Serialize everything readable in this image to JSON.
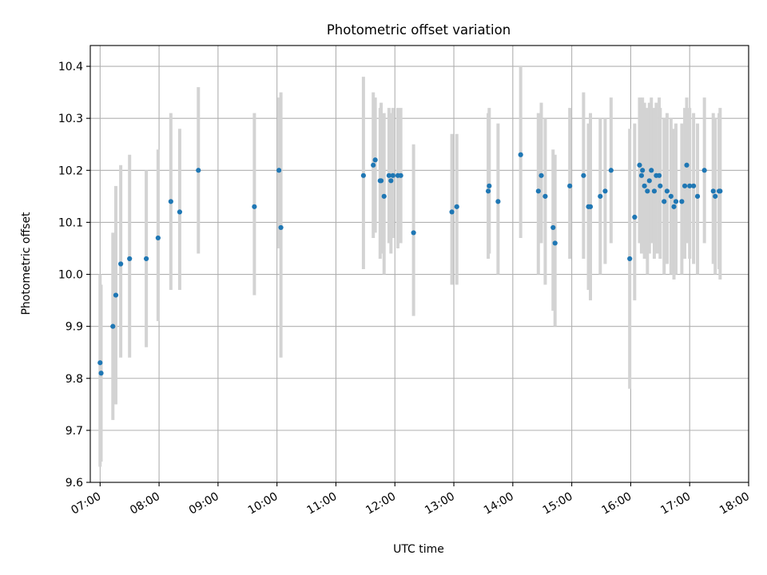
{
  "chart_data": {
    "type": "scatter",
    "title": "Photometric offset variation",
    "xlabel": "UTC time",
    "ylabel": "Photometric offset",
    "xlim": [
      "06:50",
      "18:00"
    ],
    "ylim": [
      9.6,
      10.44
    ],
    "x_ticks": [
      "07:00",
      "08:00",
      "09:00",
      "10:00",
      "11:00",
      "12:00",
      "13:00",
      "14:00",
      "15:00",
      "16:00",
      "17:00",
      "18:00"
    ],
    "y_ticks": [
      "9.6",
      "9.7",
      "9.8",
      "9.9",
      "10.0",
      "10.1",
      "10.2",
      "10.3",
      "10.4"
    ],
    "grid": true,
    "colors": {
      "points": "#1f77b4",
      "errorbars": "#d3d3d3",
      "grid": "#b0b0b0"
    },
    "series": [
      {
        "points": [
          {
            "x": "07:00",
            "y": 9.83,
            "lo": 9.63,
            "hi": 10.0
          },
          {
            "x": "07:01",
            "y": 9.81,
            "lo": 9.64,
            "hi": 9.98
          },
          {
            "x": "07:13",
            "y": 9.9,
            "lo": 9.72,
            "hi": 10.08
          },
          {
            "x": "07:16",
            "y": 9.96,
            "lo": 9.75,
            "hi": 10.17
          },
          {
            "x": "07:21",
            "y": 10.02,
            "lo": 9.84,
            "hi": 10.21
          },
          {
            "x": "07:30",
            "y": 10.03,
            "lo": 9.84,
            "hi": 10.23
          },
          {
            "x": "07:47",
            "y": 10.03,
            "lo": 9.86,
            "hi": 10.2
          },
          {
            "x": "07:59",
            "y": 10.07,
            "lo": 9.91,
            "hi": 10.24
          },
          {
            "x": "08:12",
            "y": 10.14,
            "lo": 9.97,
            "hi": 10.31
          },
          {
            "x": "08:21",
            "y": 10.12,
            "lo": 9.97,
            "hi": 10.28
          },
          {
            "x": "08:40",
            "y": 10.2,
            "lo": 10.04,
            "hi": 10.36
          },
          {
            "x": "09:37",
            "y": 10.13,
            "lo": 9.96,
            "hi": 10.31
          },
          {
            "x": "10:02",
            "y": 10.2,
            "lo": 10.05,
            "hi": 10.34
          },
          {
            "x": "10:04",
            "y": 10.09,
            "lo": 9.84,
            "hi": 10.35
          },
          {
            "x": "11:28",
            "y": 10.19,
            "lo": 10.01,
            "hi": 10.38
          },
          {
            "x": "11:38",
            "y": 10.21,
            "lo": 10.07,
            "hi": 10.35
          },
          {
            "x": "11:40",
            "y": 10.22,
            "lo": 10.08,
            "hi": 10.34
          },
          {
            "x": "11:45",
            "y": 10.18,
            "lo": 10.03,
            "hi": 10.32
          },
          {
            "x": "11:46",
            "y": 10.18,
            "lo": 10.04,
            "hi": 10.33
          },
          {
            "x": "11:49",
            "y": 10.15,
            "lo": 10.0,
            "hi": 10.31
          },
          {
            "x": "11:54",
            "y": 10.19,
            "lo": 10.06,
            "hi": 10.32
          },
          {
            "x": "11:56",
            "y": 10.18,
            "lo": 10.04,
            "hi": 10.31
          },
          {
            "x": "11:58",
            "y": 10.19,
            "lo": 10.07,
            "hi": 10.32
          },
          {
            "x": "12:03",
            "y": 10.19,
            "lo": 10.05,
            "hi": 10.32
          },
          {
            "x": "12:06",
            "y": 10.19,
            "lo": 10.06,
            "hi": 10.32
          },
          {
            "x": "12:19",
            "y": 10.08,
            "lo": 9.92,
            "hi": 10.25
          },
          {
            "x": "12:58",
            "y": 10.12,
            "lo": 9.98,
            "hi": 10.27
          },
          {
            "x": "13:03",
            "y": 10.13,
            "lo": 9.98,
            "hi": 10.27
          },
          {
            "x": "13:35",
            "y": 10.16,
            "lo": 10.03,
            "hi": 10.31
          },
          {
            "x": "13:36",
            "y": 10.17,
            "lo": 10.04,
            "hi": 10.32
          },
          {
            "x": "13:45",
            "y": 10.14,
            "lo": 10.0,
            "hi": 10.29
          },
          {
            "x": "14:08",
            "y": 10.23,
            "lo": 10.07,
            "hi": 10.4
          },
          {
            "x": "14:26",
            "y": 10.16,
            "lo": 10.0,
            "hi": 10.31
          },
          {
            "x": "14:29",
            "y": 10.19,
            "lo": 10.06,
            "hi": 10.33
          },
          {
            "x": "14:33",
            "y": 10.15,
            "lo": 9.98,
            "hi": 10.3
          },
          {
            "x": "14:41",
            "y": 10.09,
            "lo": 9.93,
            "hi": 10.24
          },
          {
            "x": "14:43",
            "y": 10.06,
            "lo": 9.9,
            "hi": 10.23
          },
          {
            "x": "14:58",
            "y": 10.17,
            "lo": 10.03,
            "hi": 10.32
          },
          {
            "x": "15:12",
            "y": 10.19,
            "lo": 10.03,
            "hi": 10.35
          },
          {
            "x": "15:17",
            "y": 10.13,
            "lo": 9.97,
            "hi": 10.29
          },
          {
            "x": "15:19",
            "y": 10.13,
            "lo": 9.95,
            "hi": 10.31
          },
          {
            "x": "15:29",
            "y": 10.15,
            "lo": 10.0,
            "hi": 10.3
          },
          {
            "x": "15:34",
            "y": 10.16,
            "lo": 10.02,
            "hi": 10.3
          },
          {
            "x": "15:40",
            "y": 10.2,
            "lo": 10.06,
            "hi": 10.34
          },
          {
            "x": "15:59",
            "y": 10.03,
            "lo": 9.78,
            "hi": 10.28
          },
          {
            "x": "16:04",
            "y": 10.11,
            "lo": 9.95,
            "hi": 10.29
          },
          {
            "x": "16:09",
            "y": 10.21,
            "lo": 10.06,
            "hi": 10.34
          },
          {
            "x": "16:11",
            "y": 10.19,
            "lo": 10.04,
            "hi": 10.33
          },
          {
            "x": "16:12",
            "y": 10.2,
            "lo": 10.05,
            "hi": 10.34
          },
          {
            "x": "16:14",
            "y": 10.17,
            "lo": 10.03,
            "hi": 10.33
          },
          {
            "x": "16:17",
            "y": 10.16,
            "lo": 10.0,
            "hi": 10.32
          },
          {
            "x": "16:19",
            "y": 10.18,
            "lo": 10.04,
            "hi": 10.33
          },
          {
            "x": "16:21",
            "y": 10.2,
            "lo": 10.06,
            "hi": 10.34
          },
          {
            "x": "16:24",
            "y": 10.16,
            "lo": 10.03,
            "hi": 10.32
          },
          {
            "x": "16:26",
            "y": 10.19,
            "lo": 10.04,
            "hi": 10.33
          },
          {
            "x": "16:29",
            "y": 10.19,
            "lo": 10.04,
            "hi": 10.34
          },
          {
            "x": "16:30",
            "y": 10.17,
            "lo": 10.03,
            "hi": 10.32
          },
          {
            "x": "16:34",
            "y": 10.14,
            "lo": 10.0,
            "hi": 10.3
          },
          {
            "x": "16:37",
            "y": 10.16,
            "lo": 10.02,
            "hi": 10.31
          },
          {
            "x": "16:41",
            "y": 10.15,
            "lo": 10.0,
            "hi": 10.3
          },
          {
            "x": "16:44",
            "y": 10.13,
            "lo": 9.99,
            "hi": 10.28
          },
          {
            "x": "16:46",
            "y": 10.14,
            "lo": 10.0,
            "hi": 10.29
          },
          {
            "x": "16:52",
            "y": 10.14,
            "lo": 10.0,
            "hi": 10.29
          },
          {
            "x": "16:55",
            "y": 10.17,
            "lo": 10.03,
            "hi": 10.32
          },
          {
            "x": "16:57",
            "y": 10.21,
            "lo": 10.06,
            "hi": 10.34
          },
          {
            "x": "17:00",
            "y": 10.17,
            "lo": 10.03,
            "hi": 10.32
          },
          {
            "x": "17:04",
            "y": 10.17,
            "lo": 10.02,
            "hi": 10.31
          },
          {
            "x": "17:08",
            "y": 10.15,
            "lo": 10.0,
            "hi": 10.29
          },
          {
            "x": "17:15",
            "y": 10.2,
            "lo": 10.06,
            "hi": 10.34
          },
          {
            "x": "17:24",
            "y": 10.16,
            "lo": 10.02,
            "hi": 10.31
          },
          {
            "x": "17:26",
            "y": 10.15,
            "lo": 10.0,
            "hi": 10.3
          },
          {
            "x": "17:30",
            "y": 10.16,
            "lo": 10.01,
            "hi": 10.31
          },
          {
            "x": "17:31",
            "y": 10.16,
            "lo": 9.99,
            "hi": 10.32
          }
        ]
      }
    ]
  }
}
